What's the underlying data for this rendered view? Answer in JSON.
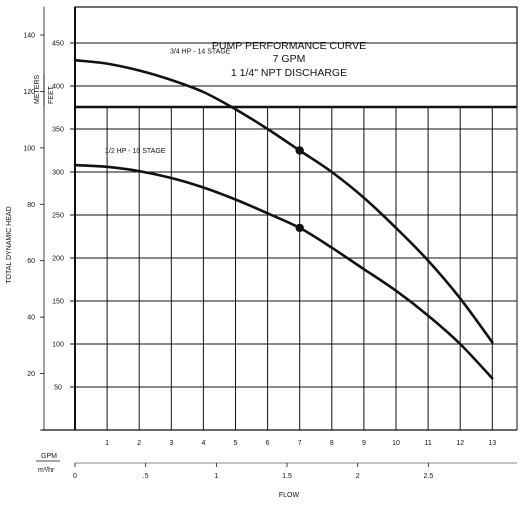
{
  "chart_data": {
    "type": "line",
    "title_lines": [
      "PUMP PERFORMANCE CURVE",
      "7 GPM",
      "1 1/4\" NPT DISCHARGE"
    ],
    "xlabel": "FLOW",
    "ylabel": "TOTAL DYNAMIC HEAD",
    "units": {
      "y_primary": "FEET",
      "y_secondary": "METERS",
      "x_primary": "GPM",
      "x_secondary": "m³/hr"
    },
    "x_ticks_gpm": [
      "1",
      "2",
      "3",
      "4",
      "5",
      "6",
      "7",
      "8",
      "9",
      "10",
      "11",
      "12",
      "13"
    ],
    "x_ticks_m3hr": [
      {
        "value": 0,
        "label": "0"
      },
      {
        "value": 0.5,
        "label": ".5"
      },
      {
        "value": 1,
        "label": "1"
      },
      {
        "value": 1.5,
        "label": "1.5"
      },
      {
        "value": 2,
        "label": "2"
      },
      {
        "value": 2.5,
        "label": "2.5"
      }
    ],
    "y_ticks_feet": [
      "50",
      "100",
      "150",
      "200",
      "250",
      "300",
      "350",
      "400",
      "450"
    ],
    "y_ticks_meters": [
      "20",
      "40",
      "60",
      "80",
      "100",
      "120",
      "140"
    ],
    "xlim": [
      0,
      13.5
    ],
    "ylim_feet": [
      0,
      470
    ],
    "grid": true,
    "series": [
      {
        "name": "3/4 HP - 14 STAGE",
        "x": [
          0,
          1,
          2,
          3,
          4,
          5,
          6,
          7,
          8,
          9,
          10,
          11,
          12,
          13
        ],
        "y": [
          430,
          426,
          418,
          407,
          393,
          373,
          350,
          325,
          300,
          270,
          235,
          197,
          153,
          102
        ],
        "marker_x": 7,
        "marker_y": 325
      },
      {
        "name": "1/2 HP - 10 STAGE",
        "x": [
          0,
          1,
          2,
          3,
          4,
          5,
          6,
          7,
          8,
          9,
          10,
          11,
          12,
          13
        ],
        "y": [
          308,
          306,
          301,
          293,
          282,
          268,
          252,
          235,
          212,
          187,
          162,
          133,
          100,
          60
        ],
        "marker_x": 7,
        "marker_y": 235
      }
    ]
  }
}
